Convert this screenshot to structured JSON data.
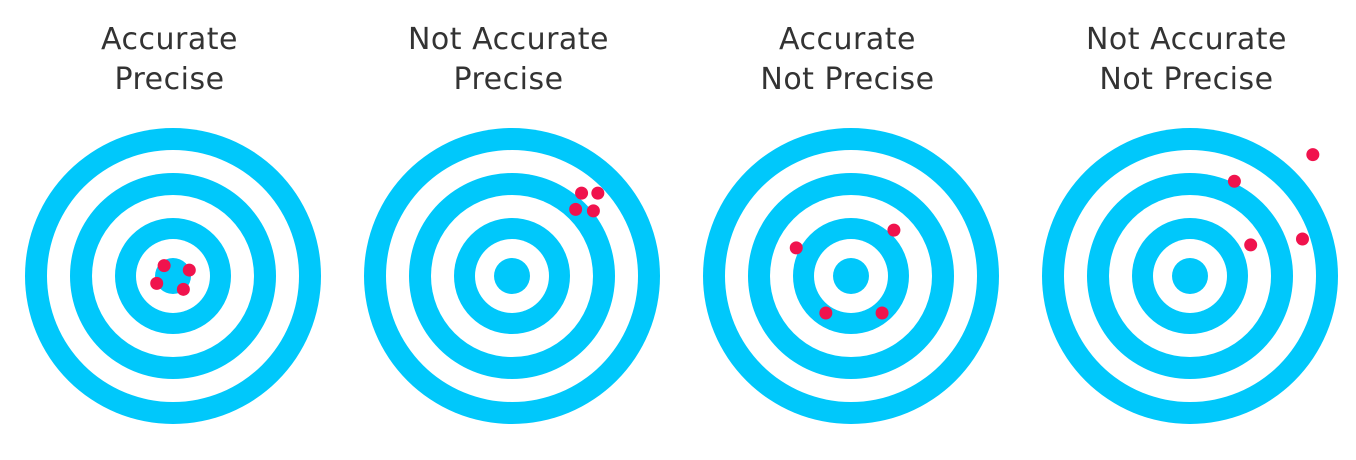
{
  "colors": {
    "ring": "#00c8fb",
    "gap": "#ffffff",
    "shot": "#f0134d",
    "title": "#333333"
  },
  "panels": [
    {
      "title_line1": "Accurate",
      "title_line2": "Precise",
      "shots": [
        [
          -0.06,
          0.07
        ],
        [
          0.11,
          0.04
        ],
        [
          -0.11,
          -0.05
        ],
        [
          0.07,
          -0.09
        ]
      ]
    },
    {
      "title_line1": "Not Accurate",
      "title_line2": "Precise",
      "shots": [
        [
          0.47,
          0.56
        ],
        [
          0.58,
          0.56
        ],
        [
          0.43,
          0.45
        ],
        [
          0.55,
          0.44
        ]
      ]
    },
    {
      "title_line1": "Accurate",
      "title_line2": "Not Precise",
      "shots": [
        [
          -0.37,
          0.19
        ],
        [
          0.29,
          0.31
        ],
        [
          -0.17,
          -0.25
        ],
        [
          0.21,
          -0.25
        ]
      ]
    },
    {
      "title_line1": "Not Accurate",
      "title_line2": "Not Precise",
      "shots": [
        [
          0.3,
          0.64
        ],
        [
          0.83,
          0.82
        ],
        [
          0.41,
          0.21
        ],
        [
          0.76,
          0.25
        ]
      ]
    }
  ]
}
